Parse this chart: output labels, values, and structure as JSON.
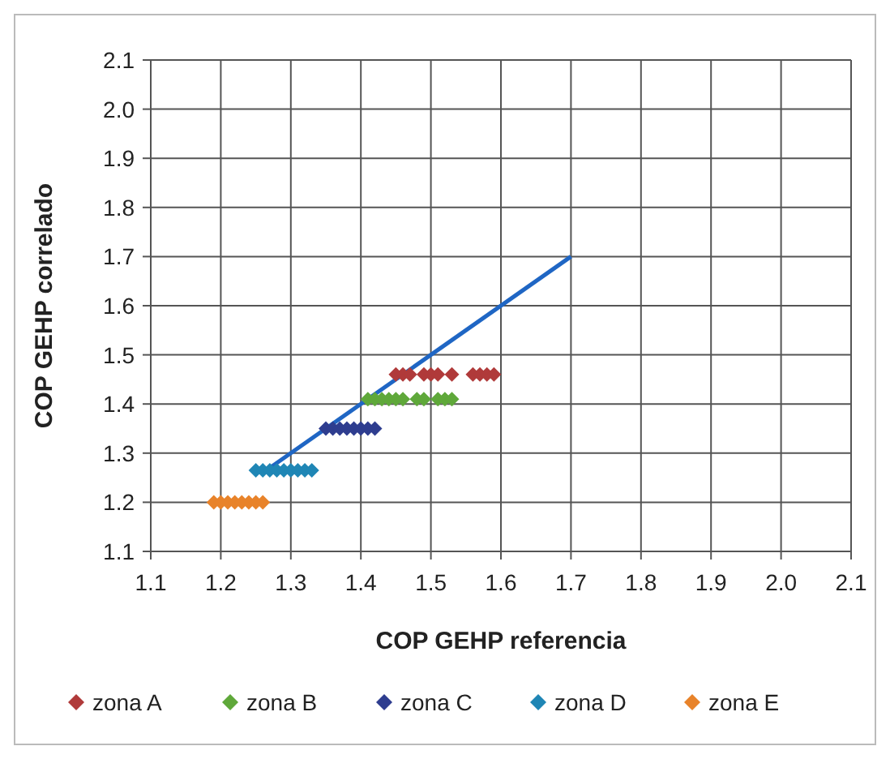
{
  "chart_data": {
    "type": "scatter",
    "xlabel": "COP GEHP referencia",
    "ylabel": "COP GEHP correlado",
    "xlim": [
      1.1,
      2.1
    ],
    "ylim": [
      1.1,
      2.1
    ],
    "xticks": [
      {
        "value": 1.1,
        "label": "1.1"
      },
      {
        "value": 1.2,
        "label": "1.2"
      },
      {
        "value": 1.3,
        "label": "1.3"
      },
      {
        "value": 1.4,
        "label": "1.4"
      },
      {
        "value": 1.5,
        "label": "1.5"
      },
      {
        "value": 1.6,
        "label": "1.6"
      },
      {
        "value": 1.7,
        "label": "1.7"
      },
      {
        "value": 1.8,
        "label": "1.8"
      },
      {
        "value": 1.9,
        "label": "1.9"
      },
      {
        "value": 2.0,
        "label": "2.0"
      },
      {
        "value": 2.1,
        "label": "2.1"
      }
    ],
    "yticks": [
      {
        "value": 1.1,
        "label": "1.1"
      },
      {
        "value": 1.2,
        "label": "1.2"
      },
      {
        "value": 1.3,
        "label": "1.3"
      },
      {
        "value": 1.4,
        "label": "1.4"
      },
      {
        "value": 1.5,
        "label": "1.5"
      },
      {
        "value": 1.6,
        "label": "1.6"
      },
      {
        "value": 1.7,
        "label": "1.7"
      },
      {
        "value": 1.8,
        "label": "1.8"
      },
      {
        "value": 1.9,
        "label": "1.9"
      },
      {
        "value": 2.0,
        "label": "2.0"
      },
      {
        "value": 2.1,
        "label": "2.1"
      }
    ],
    "grid": true,
    "legend": "bottom",
    "marker": "diamond",
    "series": [
      {
        "type": "line",
        "color": "#1f66c4",
        "marker": "none",
        "x": [
          1.26,
          1.7
        ],
        "values": [
          1.26,
          1.7
        ]
      },
      {
        "name": "zona A",
        "color": "#b03a3a",
        "x": [
          1.45,
          1.46,
          1.47,
          1.49,
          1.5,
          1.51,
          1.53,
          1.56,
          1.57,
          1.58,
          1.59
        ],
        "values": [
          1.46,
          1.46,
          1.46,
          1.46,
          1.46,
          1.46,
          1.46,
          1.46,
          1.46,
          1.46,
          1.46
        ]
      },
      {
        "name": "zona B",
        "color": "#5fa83a",
        "x": [
          1.41,
          1.42,
          1.43,
          1.44,
          1.45,
          1.46,
          1.48,
          1.49,
          1.51,
          1.52,
          1.53
        ],
        "values": [
          1.41,
          1.41,
          1.41,
          1.41,
          1.41,
          1.41,
          1.41,
          1.41,
          1.41,
          1.41,
          1.41
        ]
      },
      {
        "name": "zona C",
        "color": "#2e3d8f",
        "x": [
          1.35,
          1.36,
          1.37,
          1.38,
          1.39,
          1.4,
          1.41,
          1.42
        ],
        "values": [
          1.35,
          1.35,
          1.35,
          1.35,
          1.35,
          1.35,
          1.35,
          1.35
        ]
      },
      {
        "name": "zona D",
        "color": "#1f86b5",
        "x": [
          1.25,
          1.26,
          1.27,
          1.28,
          1.29,
          1.3,
          1.31,
          1.32,
          1.33
        ],
        "values": [
          1.265,
          1.265,
          1.265,
          1.265,
          1.265,
          1.265,
          1.265,
          1.265,
          1.265
        ]
      },
      {
        "name": "zona E",
        "color": "#e8832a",
        "x": [
          1.19,
          1.2,
          1.21,
          1.22,
          1.23,
          1.24,
          1.25,
          1.26
        ],
        "values": [
          1.2,
          1.2,
          1.2,
          1.2,
          1.2,
          1.2,
          1.2,
          1.2
        ]
      }
    ]
  }
}
